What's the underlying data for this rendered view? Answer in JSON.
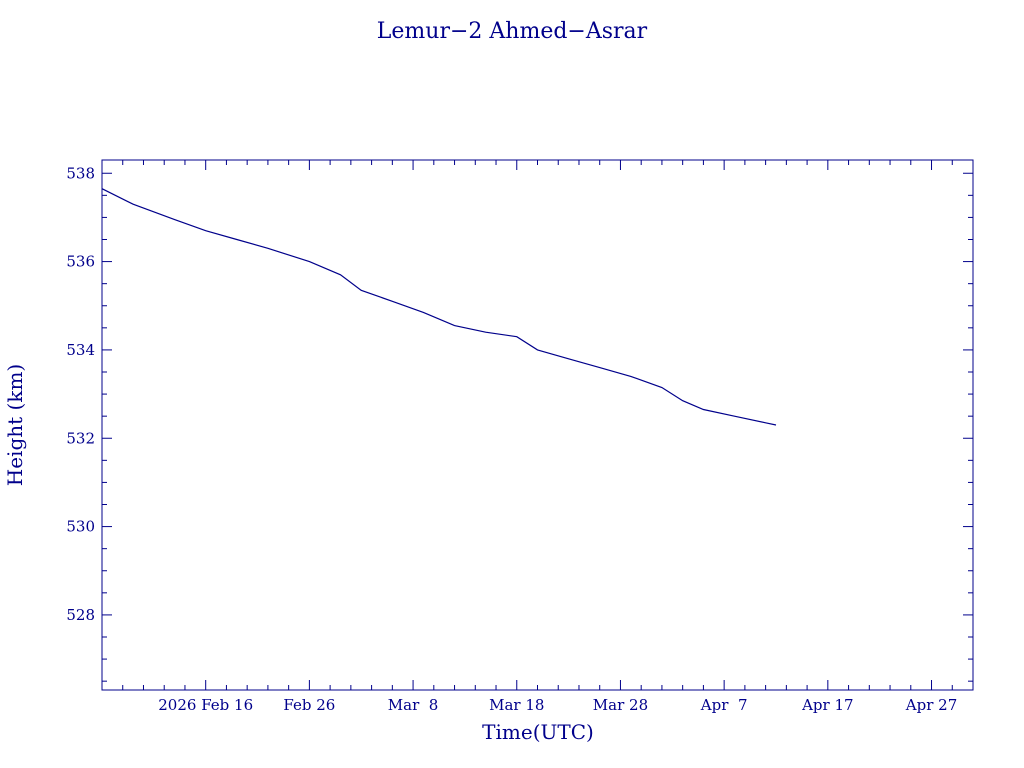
{
  "chart_data": {
    "type": "line",
    "title": "Lemur−2 Ahmed−Asrar",
    "xlabel": "Time(UTC)",
    "ylabel": "Height (km)",
    "xlim": [
      "2026-02-06",
      "2026-05-01"
    ],
    "ylim": [
      526.3,
      538.3
    ],
    "grid": false,
    "colors": {
      "axes": "#00008b",
      "series": "#00008b",
      "background": "#ffffff"
    },
    "y_ticks": [
      528,
      530,
      532,
      534,
      536,
      538
    ],
    "x_ticks": [
      {
        "date": "2026-02-16",
        "label": "2026 Feb 16"
      },
      {
        "date": "2026-02-26",
        "label": "Feb 26"
      },
      {
        "date": "2026-03-08",
        "label": "Mar  8"
      },
      {
        "date": "2026-03-18",
        "label": "Mar 18"
      },
      {
        "date": "2026-03-28",
        "label": "Mar 28"
      },
      {
        "date": "2026-04-07",
        "label": "Apr  7"
      },
      {
        "date": "2026-04-17",
        "label": "Apr 17"
      },
      {
        "date": "2026-04-27",
        "label": "Apr 27"
      }
    ],
    "series": [
      {
        "x": [
          "2026-02-06",
          "2026-02-09",
          "2026-02-13",
          "2026-02-16",
          "2026-02-19",
          "2026-02-22",
          "2026-02-26",
          "2026-02-29",
          "2026-03-03",
          "2026-03-06",
          "2026-03-09",
          "2026-03-12",
          "2026-03-15",
          "2026-03-18",
          "2026-03-20",
          "2026-03-23",
          "2026-03-26",
          "2026-03-29",
          "2026-04-01",
          "2026-04-03",
          "2026-04-05",
          "2026-04-08",
          "2026-04-11",
          "2026-04-12"
        ],
        "y": [
          537.65,
          537.3,
          536.95,
          536.7,
          536.5,
          536.3,
          536.0,
          535.7,
          535.35,
          535.1,
          534.85,
          534.55,
          534.4,
          534.3,
          534.0,
          533.8,
          533.6,
          533.4,
          533.15,
          532.85,
          532.65,
          532.5,
          532.35,
          532.3
        ]
      }
    ]
  }
}
